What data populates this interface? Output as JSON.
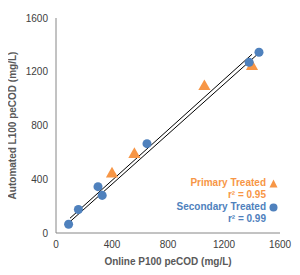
{
  "chart_data": {
    "type": "scatter",
    "x_label": "Online P100 peCOD (mg/L)",
    "y_label": "Automated L100 peCOD (mg/L)",
    "xlim": [
      0,
      1600
    ],
    "ylim": [
      0,
      1600
    ],
    "xticks": [
      0,
      400,
      800,
      1200,
      1600
    ],
    "yticks": [
      0,
      400,
      800,
      1200,
      1600
    ],
    "grid": false,
    "series": [
      {
        "type": "line",
        "color": "#000000",
        "line_style": "solid",
        "x": [
          100,
          1400
        ],
        "values": [
          110,
          1330
        ]
      },
      {
        "type": "line",
        "color": "#000000",
        "line_style": "solid",
        "x": [
          90,
          1450
        ],
        "values": [
          75,
          1340
        ]
      },
      {
        "name": "Primary Treated",
        "annotation": "r² = 0.95",
        "type": "scatter",
        "color": "#F79646",
        "marker": "triangle",
        "x": [
          400,
          560,
          1060,
          1400
        ],
        "values": [
          440,
          585,
          1090,
          1240
        ]
      },
      {
        "name": "Secondary Treated",
        "annotation": "r² = 0.99",
        "type": "scatter",
        "color": "#4F81BD",
        "marker": "circle",
        "x": [
          90,
          160,
          300,
          330,
          650,
          1380,
          1450
        ],
        "values": [
          65,
          175,
          345,
          280,
          665,
          1270,
          1345
        ]
      }
    ]
  }
}
